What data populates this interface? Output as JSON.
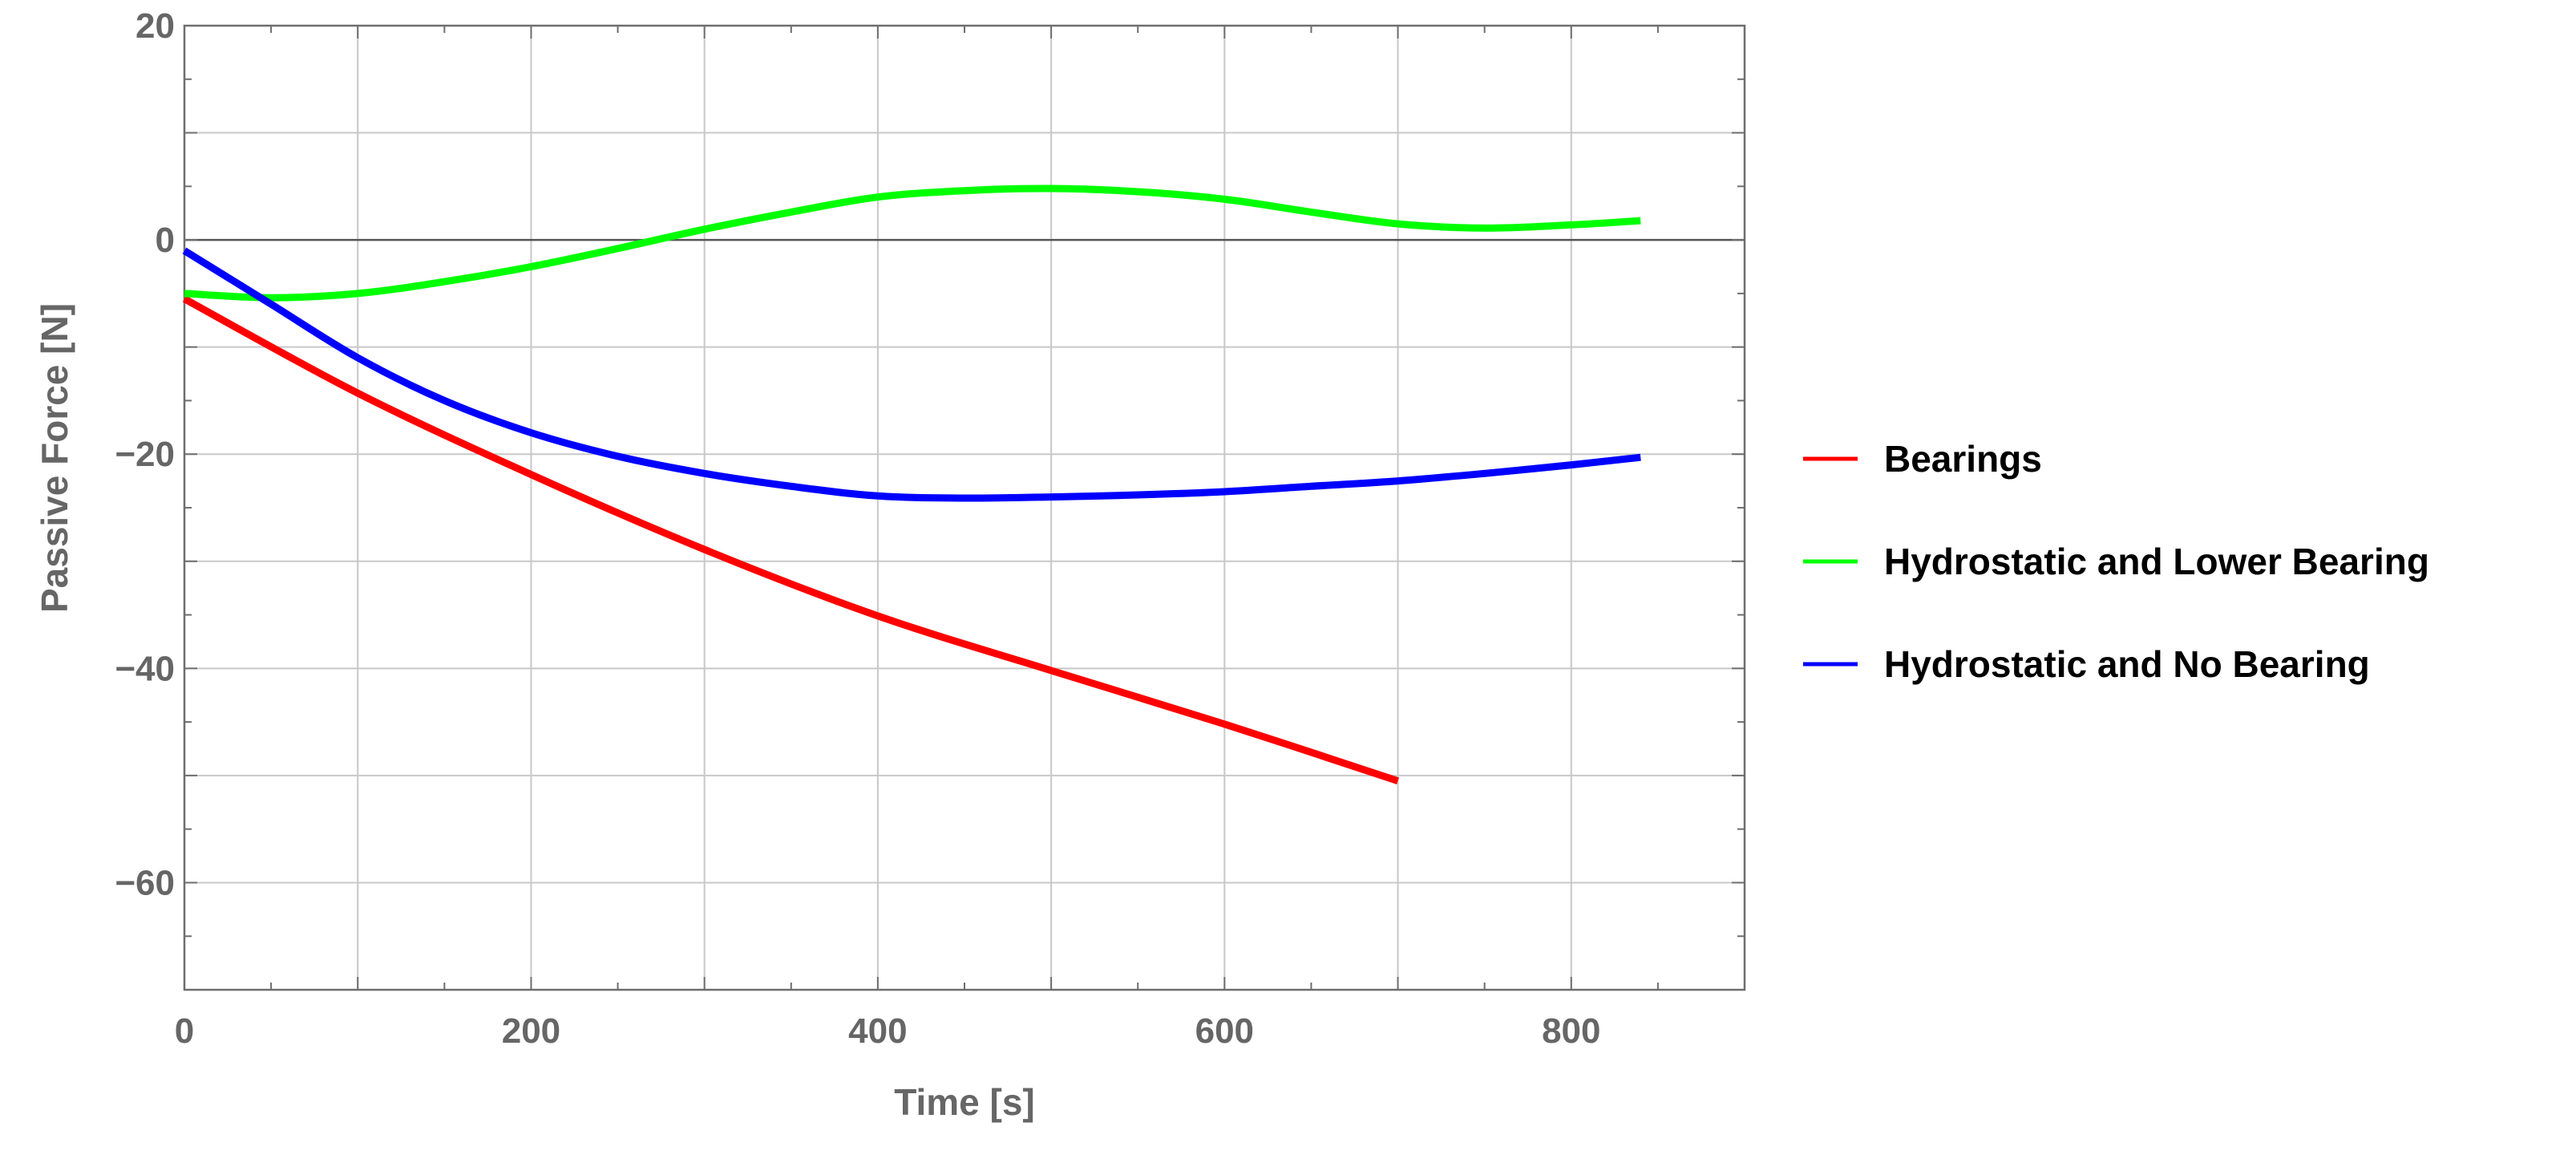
{
  "chart_data": {
    "type": "line",
    "title": "",
    "xlabel": "Time [s]",
    "ylabel": "Passive Force [N]",
    "xlim": [
      0,
      900
    ],
    "ylim": [
      -70,
      20
    ],
    "xticks": [
      0,
      200,
      400,
      600,
      800
    ],
    "xtick_labels": [
      "0",
      "200",
      "400",
      "600",
      "800"
    ],
    "yticks": [
      20,
      0,
      -20,
      -40,
      -60
    ],
    "ytick_labels": [
      "20",
      "0",
      "−20",
      "−40",
      "−60"
    ],
    "grid": true,
    "legend_position": "right",
    "series": [
      {
        "name": "Bearings",
        "color": "#ff0000",
        "x": [
          0,
          100,
          200,
          300,
          400,
          500,
          600,
          700
        ],
        "y": [
          -5.5,
          -14.3,
          -21.9,
          -28.9,
          -35.1,
          -40.2,
          -45.2,
          -50.5
        ]
      },
      {
        "name": "Hydrostatic and Lower Bearing",
        "color": "#00ff00",
        "x": [
          0,
          50,
          100,
          150,
          200,
          250,
          300,
          350,
          400,
          450,
          500,
          550,
          600,
          650,
          700,
          750,
          800,
          840
        ],
        "y": [
          -5.0,
          -5.4,
          -5.0,
          -3.9,
          -2.5,
          -0.8,
          1.0,
          2.6,
          4.0,
          4.6,
          4.8,
          4.5,
          3.8,
          2.6,
          1.5,
          1.1,
          1.4,
          1.8
        ]
      },
      {
        "name": "Hydrostatic and No Bearing",
        "color": "#0000ff",
        "x": [
          0,
          50,
          100,
          150,
          200,
          250,
          300,
          350,
          400,
          450,
          500,
          550,
          600,
          650,
          700,
          750,
          800,
          840
        ],
        "y": [
          -1.0,
          -6.0,
          -11.0,
          -15.0,
          -18.0,
          -20.2,
          -21.8,
          -23.0,
          -23.9,
          -24.1,
          -24.0,
          -23.8,
          -23.5,
          -23.0,
          -22.5,
          -21.8,
          -21.0,
          -20.3
        ]
      }
    ]
  }
}
